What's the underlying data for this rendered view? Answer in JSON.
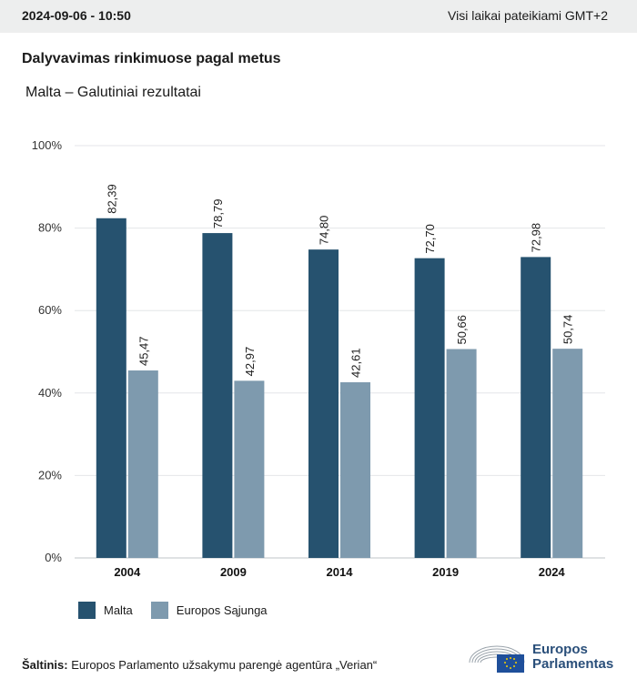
{
  "header": {
    "datetime": "2024-09-06 - 10:50",
    "timezone_note": "Visi laikai pateikiami GMT+2"
  },
  "title": "Dalyvavimas rinkimuose pagal metus",
  "subtitle": "Malta – Galutiniai rezultatai",
  "chart_data": {
    "type": "bar",
    "categories": [
      "2004",
      "2009",
      "2014",
      "2019",
      "2024"
    ],
    "series": [
      {
        "name": "Malta",
        "values": [
          82.39,
          78.79,
          74.8,
          72.7,
          72.98
        ],
        "labels": [
          "82,39",
          "78,79",
          "74,80",
          "72,70",
          "72,98"
        ],
        "color": "#26526f"
      },
      {
        "name": "Europos Sąjunga",
        "values": [
          45.47,
          42.97,
          42.61,
          50.66,
          50.74
        ],
        "labels": [
          "45,47",
          "42,97",
          "42,61",
          "50,66",
          "50,74"
        ],
        "color": "#7e9aae"
      }
    ],
    "ylim": [
      0,
      100
    ],
    "yticks": [
      "0%",
      "20%",
      "40%",
      "60%",
      "80%",
      "100%"
    ],
    "grid": true,
    "legend_position": "bottom-left"
  },
  "legend": {
    "malta": "Malta",
    "eu": "Europos Sąjunga"
  },
  "source": {
    "label": "Šaltinis:",
    "text": "Europos Parlamento užsakymu parengė agentūra „Verian“"
  },
  "logo": {
    "line1": "Europos",
    "line2": "Parlamentas"
  },
  "colors": {
    "malta": "#26526f",
    "eu": "#7e9aae",
    "logo": "#2a4f7a"
  }
}
